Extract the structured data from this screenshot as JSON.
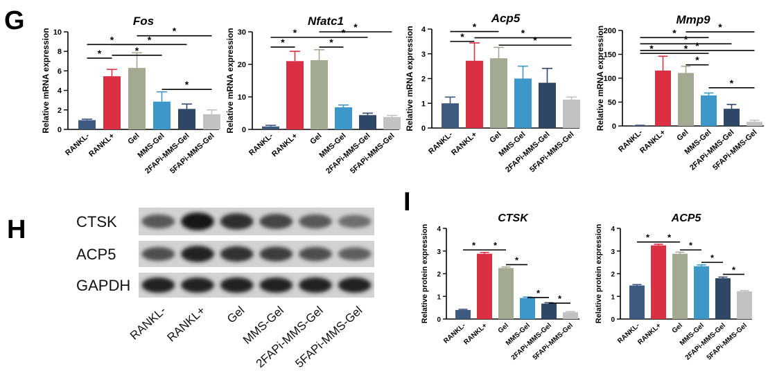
{
  "panels": {
    "G": "G",
    "H": "H",
    "I": "I"
  },
  "colors": [
    "#3f5a80",
    "#db3044",
    "#a2aa92",
    "#3d97c8",
    "#2f4766",
    "#c2c2c2"
  ],
  "chart_data": [
    {
      "type": "bar",
      "title": "Fos",
      "ylabel": "Relative mRNA expression",
      "categories": [
        "RANKL-",
        "RANKL+",
        "Gel",
        "MMS-Gel",
        "2FAPi-MMS-Gel",
        "5FAPi-MMS-Gel"
      ],
      "values": [
        0.95,
        5.45,
        6.3,
        2.85,
        2.1,
        1.55
      ],
      "errors": [
        0.1,
        0.7,
        1.55,
        1.0,
        0.5,
        0.45
      ],
      "ylim": [
        0,
        10
      ],
      "yticks": [
        0,
        2,
        4,
        6,
        8,
        10
      ],
      "significance": [
        {
          "from": 0,
          "to": 1,
          "y": 7.3,
          "label": "*"
        },
        {
          "from": 0,
          "to": 2,
          "y": 8.7,
          "label": "*"
        },
        {
          "from": 1,
          "to": 3,
          "y": 7.6,
          "label": "*"
        },
        {
          "from": 1,
          "to": 4,
          "y": 8.7,
          "label": "*"
        },
        {
          "from": 2,
          "to": 5,
          "y": 9.6,
          "label": "*"
        },
        {
          "from": 3,
          "to": 5,
          "y": 4.1,
          "label": "*"
        }
      ]
    },
    {
      "type": "bar",
      "title": "Nfatc1",
      "ylabel": "Relative mRNA expression",
      "categories": [
        "RANKL-",
        "RANKL+",
        "Gel",
        "MMS-Gel",
        "2FAPi-MMS-Gel",
        "5FAPi-MMS-Gel"
      ],
      "values": [
        0.9,
        21.0,
        21.3,
        6.8,
        4.4,
        3.8
      ],
      "errors": [
        0.35,
        3.0,
        3.2,
        0.7,
        0.6,
        0.5
      ],
      "ylim": [
        0,
        30
      ],
      "yticks": [
        0,
        10,
        20,
        30
      ],
      "significance": [
        {
          "from": 0,
          "to": 1,
          "y": 25.3,
          "label": "*"
        },
        {
          "from": 0,
          "to": 2,
          "y": 28.3,
          "label": "*"
        },
        {
          "from": 2,
          "to": 3,
          "y": 25.3,
          "label": "*"
        },
        {
          "from": 2,
          "to": 4,
          "y": 28.3,
          "label": "*"
        },
        {
          "from": 2,
          "to": 5,
          "y": 30.0,
          "label": "*"
        }
      ]
    },
    {
      "type": "bar",
      "title": "Acp5",
      "ylabel": "Relative mRNA expression",
      "categories": [
        "RANKL-",
        "RANKL+",
        "Gel",
        "MMS-Gel",
        "2FAPi-MMS-Gel",
        "5FAPi-MMS-Gel"
      ],
      "values": [
        1.0,
        2.72,
        2.82,
        2.0,
        1.83,
        1.15
      ],
      "errors": [
        0.25,
        0.72,
        0.44,
        0.5,
        0.58,
        0.1
      ],
      "ylim": [
        0,
        4
      ],
      "yticks": [
        0,
        1,
        2,
        3,
        4
      ],
      "significance": [
        {
          "from": 0,
          "to": 1,
          "y": 3.5,
          "label": "*"
        },
        {
          "from": 0,
          "to": 2,
          "y": 3.9,
          "label": "*"
        },
        {
          "from": 1,
          "to": 5,
          "y": 3.65,
          "label": "*"
        },
        {
          "from": 2,
          "to": 5,
          "y": 3.35,
          "label": "*"
        }
      ]
    },
    {
      "type": "bar",
      "title": "Mmp9",
      "ylabel": "Relative mRNA expression",
      "categories": [
        "RANKL-",
        "RANKL+",
        "Gel",
        "MMS-Gel",
        "2FAPi-MMS-Gel",
        "5FAPi-MMS-Gel"
      ],
      "values": [
        1.0,
        116,
        111,
        64,
        36,
        9
      ],
      "errors": [
        0.5,
        30,
        14,
        5,
        9,
        3
      ],
      "ylim": [
        0,
        200
      ],
      "yticks": [
        0,
        50,
        100,
        150,
        200
      ],
      "significance": [
        {
          "from": 0,
          "to": 3,
          "y": 185,
          "label": "*"
        },
        {
          "from": 0,
          "to": 4,
          "y": 172,
          "label": "*"
        },
        {
          "from": 0,
          "to": 5,
          "y": 158,
          "label": "*"
        },
        {
          "from": 0,
          "to": 1,
          "y": 152,
          "label": "*"
        },
        {
          "from": 1,
          "to": 3,
          "y": 152,
          "label": "*"
        },
        {
          "from": 2,
          "to": 5,
          "y": 197,
          "label": "*"
        },
        {
          "from": 2,
          "to": 3,
          "y": 128,
          "label": "*"
        },
        {
          "from": 3,
          "to": 5,
          "y": 80,
          "label": "*"
        }
      ]
    },
    {
      "type": "bar",
      "title": "CTSK",
      "ylabel": "Relative protein expression",
      "categories": [
        "RANKL-",
        "RANKL+",
        "Gel",
        "MMS-Gel",
        "2FAPi-MMS-Gel",
        "5FAPi-MMS-Gel"
      ],
      "values": [
        0.4,
        2.88,
        2.25,
        0.93,
        0.68,
        0.3
      ],
      "errors": [
        0.03,
        0.06,
        0.05,
        0.04,
        0.04,
        0.03
      ],
      "ylim": [
        0,
        4
      ],
      "yticks": [
        0,
        1,
        2,
        3,
        4
      ],
      "significance": [
        {
          "from": 0,
          "to": 1,
          "y": 3.05,
          "label": "*"
        },
        {
          "from": 1,
          "to": 2,
          "y": 3.05,
          "label": "*"
        },
        {
          "from": 2,
          "to": 3,
          "y": 2.4,
          "label": "*"
        },
        {
          "from": 3,
          "to": 4,
          "y": 0.95,
          "label": "*"
        },
        {
          "from": 4,
          "to": 5,
          "y": 0.7,
          "label": "*"
        }
      ]
    },
    {
      "type": "bar",
      "title": "ACP5",
      "ylabel": "Relative protein expression",
      "categories": [
        "RANKL-",
        "RANKL+",
        "Gel",
        "MMS-Gel",
        "2FAPi-MMS-Gel",
        "5FAPi-MMS-Gel"
      ],
      "values": [
        1.48,
        3.25,
        2.88,
        2.33,
        1.8,
        1.22
      ],
      "errors": [
        0.04,
        0.05,
        0.07,
        0.06,
        0.05,
        0.04
      ],
      "ylim": [
        0,
        4
      ],
      "yticks": [
        0,
        1,
        2,
        3,
        4
      ],
      "significance": [
        {
          "from": 0,
          "to": 1,
          "y": 3.4,
          "label": "*"
        },
        {
          "from": 1,
          "to": 2,
          "y": 3.4,
          "label": "*"
        },
        {
          "from": 2,
          "to": 3,
          "y": 3.05,
          "label": "*"
        },
        {
          "from": 3,
          "to": 4,
          "y": 2.5,
          "label": "*"
        },
        {
          "from": 4,
          "to": 5,
          "y": 1.97,
          "label": "*"
        }
      ]
    }
  ],
  "blot": {
    "rows": [
      {
        "label": "CTSK",
        "intensity": [
          0.55,
          1.0,
          0.82,
          0.68,
          0.55,
          0.4
        ]
      },
      {
        "label": "ACP5",
        "intensity": [
          0.6,
          0.92,
          0.8,
          0.72,
          0.62,
          0.5
        ]
      },
      {
        "label": "GAPDH",
        "intensity": [
          0.92,
          0.9,
          0.92,
          0.9,
          0.92,
          0.9
        ]
      }
    ],
    "lanes": [
      "RANKL-",
      "RANKL+",
      "Gel",
      "MMS-Gel",
      "2FAPi-MMS-Gel",
      "5FAPi-MMS-Gel"
    ]
  }
}
